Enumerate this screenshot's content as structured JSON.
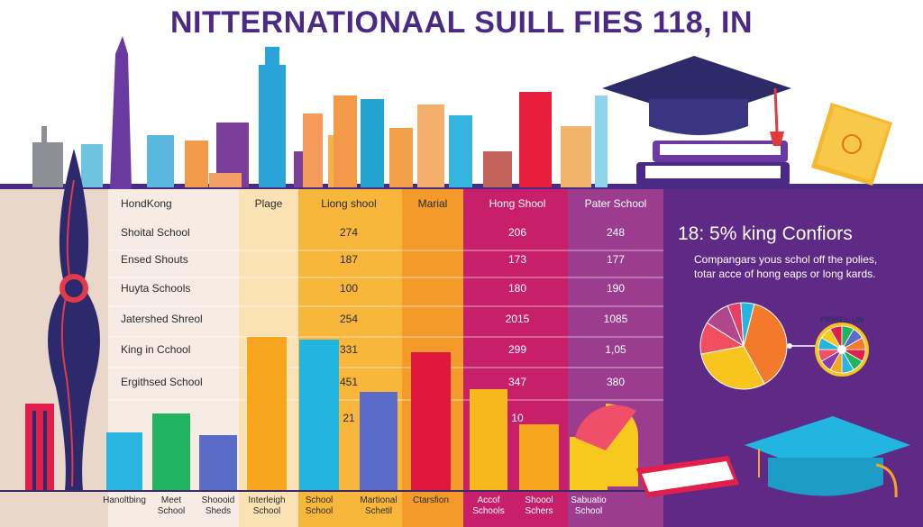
{
  "title": "NITTERNATIONAAL SUILL FIES 118, IN",
  "table": {
    "row_header": "HondKong",
    "columns": [
      "Plage",
      "Liong shool",
      "Marial",
      "Hong Shool",
      "Pater School"
    ],
    "rows": [
      {
        "label": "Shoital School",
        "values": [
          "",
          "274",
          "",
          "206",
          "248"
        ]
      },
      {
        "label": "Ensed Shouts",
        "values": [
          "",
          "187",
          "",
          "173",
          "177"
        ]
      },
      {
        "label": "Huyta Schools",
        "values": [
          "",
          "100",
          "",
          "180",
          "190"
        ]
      },
      {
        "label": "Jatershed Shreol",
        "values": [
          "",
          "254",
          "",
          "2015",
          "1085"
        ]
      },
      {
        "label": "King in Cchool",
        "values": [
          "",
          "331",
          "",
          "299",
          "1,05"
        ]
      },
      {
        "label": "Ergithsed School",
        "values": [
          "",
          "451",
          "",
          "347",
          "380"
        ]
      },
      {
        "label": "",
        "values": [
          "",
          "21",
          "",
          "10",
          ""
        ]
      }
    ]
  },
  "side_panel": {
    "heading": "18: 5% king Confiors",
    "text_line1": "Compangars yous schol off the polies,",
    "text_line2": "totar acce of hong eaps or long kards.",
    "wheel_label": "PRIBEL UN"
  },
  "chart_data": {
    "type": "bar",
    "categories": [
      "Hanoltbing",
      "Meet School",
      "Shoooid Sheds",
      "Interleigh School",
      "School School",
      "Martional Schetil",
      "Ctarsfion",
      "Accof Schools",
      "Shoool Schers",
      "Sabuatio School"
    ],
    "values": [
      65,
      86,
      62,
      171,
      168,
      110,
      154,
      113,
      74,
      60
    ],
    "colors": [
      "#2ab5e0",
      "#22b360",
      "#5a6bc8",
      "#f7a51e",
      "#22b5e0",
      "#5a6bc8",
      "#e0173c",
      "#f7b81e",
      "#f7a51e",
      "#f7c81e"
    ],
    "category_lines": [
      [
        "Hanoltbing"
      ],
      [
        "Meet",
        "School"
      ],
      [
        "Shoooid",
        "Sheds"
      ],
      [
        "Interleigh",
        "School"
      ],
      [
        "School",
        "School"
      ],
      [
        "Martional",
        "Schetil"
      ],
      [
        "Ctarsfion"
      ],
      [
        "Accof",
        "Schools"
      ],
      [
        "Shoool",
        "Schers"
      ],
      [
        "Sabuatio",
        "School"
      ]
    ],
    "ylim": [
      0,
      180
    ],
    "xlabel": "",
    "ylabel": ""
  },
  "pie_data": {
    "type": "pie",
    "values": [
      38,
      30,
      12,
      10,
      5,
      5
    ],
    "colors": [
      "#f27a2a",
      "#f7c51e",
      "#f04f5f",
      "#b0468c",
      "#e83e64",
      "#22b5e0"
    ]
  }
}
